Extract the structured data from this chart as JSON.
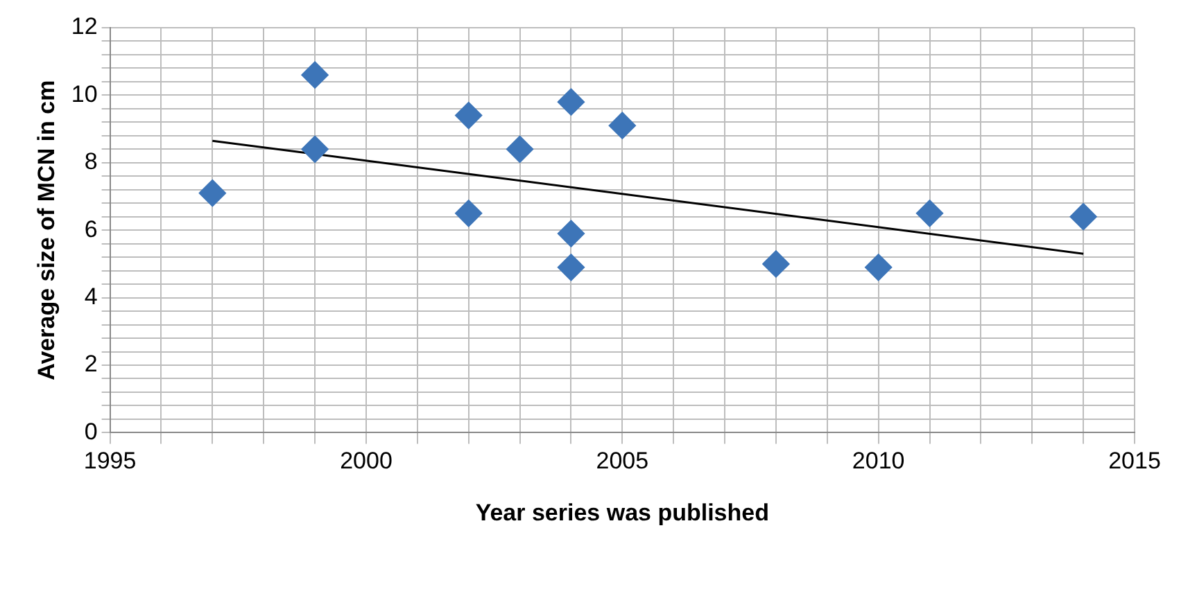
{
  "chart_data": {
    "type": "scatter",
    "xlabel": "Year series was published",
    "ylabel": "Average size of MCN in cm",
    "xlim": [
      1995,
      2015
    ],
    "xticks": [
      1995,
      {
        "value": 1996,
        "label": null
      },
      {
        "value": 1997,
        "label": null
      },
      {
        "value": 1998,
        "label": null
      },
      {
        "value": 1999,
        "label": null
      },
      2000,
      {
        "value": 2001,
        "label": null
      },
      {
        "value": 2002,
        "label": null
      },
      {
        "value": 2003,
        "label": null
      },
      {
        "value": 2004,
        "label": null
      },
      2005,
      {
        "value": 2006,
        "label": null
      },
      {
        "value": 2007,
        "label": null
      },
      {
        "value": 2008,
        "label": null
      },
      {
        "value": 2009,
        "label": null
      },
      2010,
      {
        "value": 2011,
        "label": null
      },
      {
        "value": 2012,
        "label": null
      },
      {
        "value": 2013,
        "label": null
      },
      {
        "value": 2014,
        "label": null
      },
      2015
    ],
    "ylim": [
      0,
      12
    ],
    "yticks": [
      0,
      {
        "value": 0.4,
        "label": null
      },
      {
        "value": 0.8,
        "label": null
      },
      {
        "value": 1.2,
        "label": null
      },
      {
        "value": 1.6,
        "label": null
      },
      2,
      {
        "value": 2.4,
        "label": null
      },
      {
        "value": 2.8,
        "label": null
      },
      {
        "value": 3.2,
        "label": null
      },
      {
        "value": 3.6,
        "label": null
      },
      4,
      {
        "value": 4.4,
        "label": null
      },
      {
        "value": 4.8,
        "label": null
      },
      {
        "value": 5.2,
        "label": null
      },
      {
        "value": 5.6,
        "label": null
      },
      6,
      {
        "value": 6.4,
        "label": null
      },
      {
        "value": 6.8,
        "label": null
      },
      {
        "value": 7.2,
        "label": null
      },
      {
        "value": 7.6,
        "label": null
      },
      8,
      {
        "value": 8.4,
        "label": null
      },
      {
        "value": 8.8,
        "label": null
      },
      {
        "value": 9.2,
        "label": null
      },
      {
        "value": 9.6,
        "label": null
      },
      10,
      {
        "value": 10.4,
        "label": null
      },
      {
        "value": 10.8,
        "label": null
      },
      {
        "value": 11.2,
        "label": null
      },
      {
        "value": 11.6,
        "label": null
      },
      12
    ],
    "grid": true,
    "legend": false,
    "series": [
      {
        "type": "scatter",
        "color": "#3d75b8",
        "marker": "diamond",
        "x": [
          1997,
          1999,
          1999,
          2002,
          2002,
          2003,
          2004,
          2004,
          2004,
          2005,
          2008,
          2010,
          2011,
          2014
        ],
        "values": [
          7.1,
          10.6,
          8.4,
          9.4,
          6.5,
          8.4,
          9.8,
          5.9,
          4.9,
          9.1,
          5.0,
          4.9,
          6.5,
          6.4
        ]
      },
      {
        "type": "line",
        "color": "#000000",
        "marker": "none",
        "line_style": "solid",
        "x": [
          1997,
          2014
        ],
        "values": [
          8.65,
          5.3
        ]
      }
    ]
  }
}
